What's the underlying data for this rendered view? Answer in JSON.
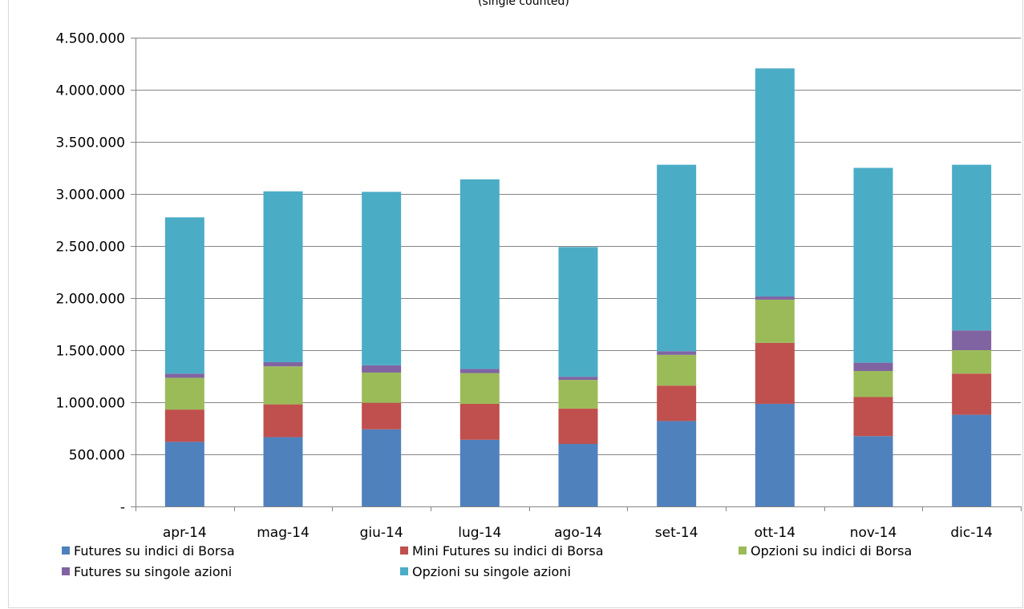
{
  "chart_data": {
    "type": "bar",
    "stacked": true,
    "subtitle": "(single counted)",
    "categories": [
      "apr-14",
      "mag-14",
      "giu-14",
      "lug-14",
      "ago-14",
      "set-14",
      "ott-14",
      "nov-14",
      "dic-14"
    ],
    "ylim": [
      0,
      4500000
    ],
    "yticks": [
      0,
      500000,
      1000000,
      1500000,
      2000000,
      2500000,
      3000000,
      3500000,
      4000000,
      4500000
    ],
    "ytick_labels": [
      "-",
      "500.000",
      "1.000.000",
      "1.500.000",
      "2.000.000",
      "2.500.000",
      "3.000.000",
      "3.500.000",
      "4.000.000",
      "4.500.000"
    ],
    "grid": true,
    "legend_position": "bottom",
    "series": [
      {
        "name": "Futures su indici di Borsa",
        "color": "#4f81bd",
        "values": [
          620000,
          665000,
          740000,
          640000,
          600000,
          820000,
          985000,
          675000,
          880000
        ]
      },
      {
        "name": "Mini Futures su indici di Borsa",
        "color": "#c0504d",
        "values": [
          310000,
          315000,
          255000,
          345000,
          340000,
          340000,
          585000,
          375000,
          395000
        ]
      },
      {
        "name": "Opzioni su indici di Borsa",
        "color": "#9bbb59",
        "values": [
          305000,
          365000,
          290000,
          295000,
          275000,
          295000,
          415000,
          250000,
          225000
        ]
      },
      {
        "name": "Futures su singole azioni",
        "color": "#8064a2",
        "values": [
          40000,
          40000,
          70000,
          40000,
          30000,
          35000,
          30000,
          80000,
          190000
        ]
      },
      {
        "name": "Opzioni su singole azioni",
        "color": "#4bacc6",
        "values": [
          1500000,
          1640000,
          1665000,
          1820000,
          1245000,
          1790000,
          2190000,
          1870000,
          1590000
        ]
      }
    ]
  }
}
